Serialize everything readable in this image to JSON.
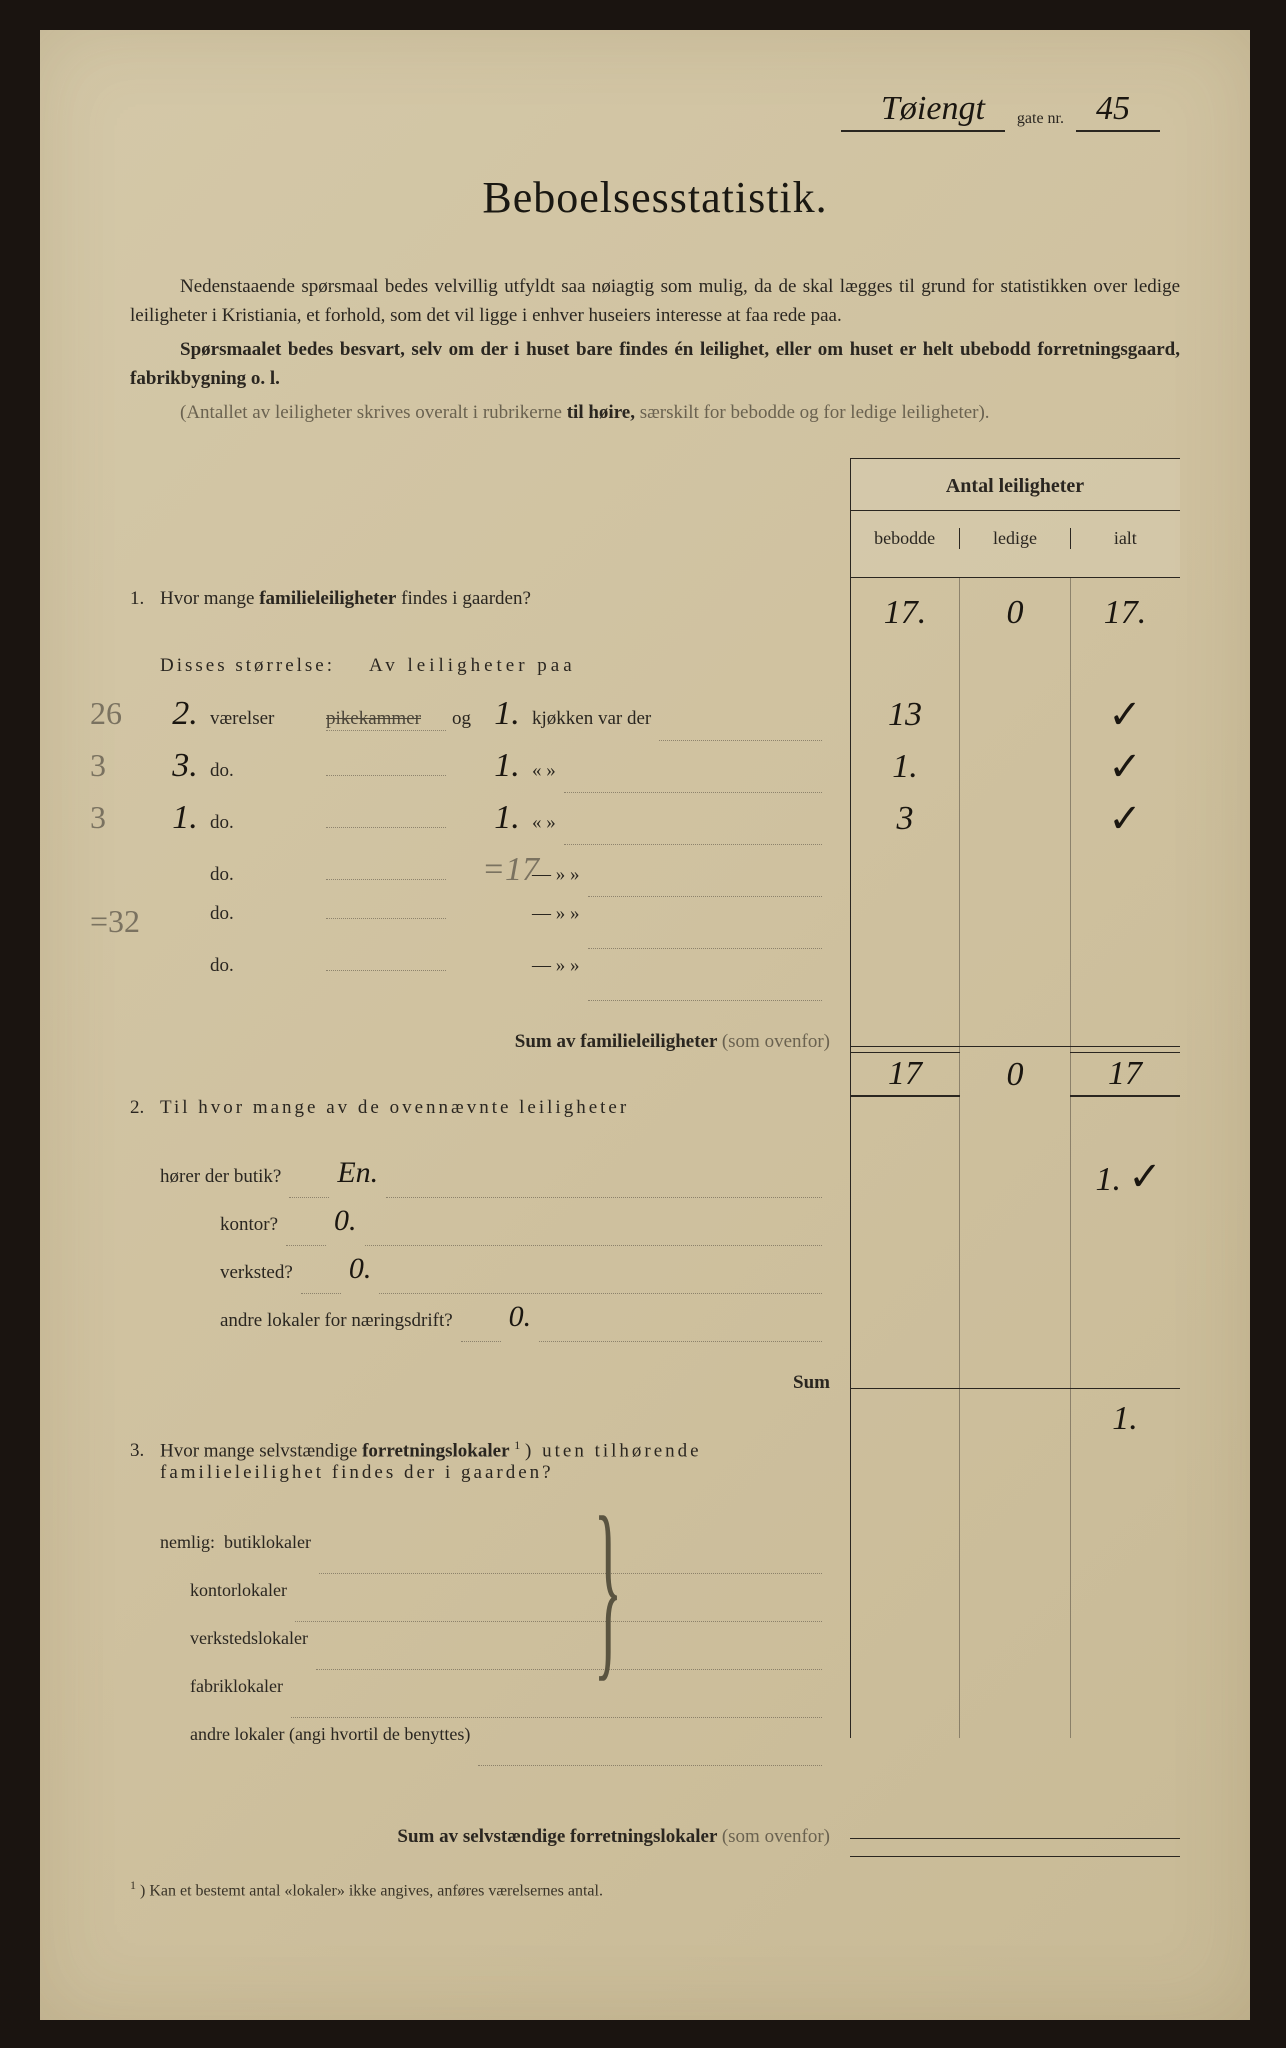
{
  "colors": {
    "paper": "#d4c8a8",
    "ink": "#2a2620",
    "handwriting": "#1a1610",
    "pencil": "#7a7260",
    "faded": "#6a6250",
    "background": "#1a1410"
  },
  "typography": {
    "body_fontsize": 19,
    "title_fontsize": 44,
    "handwriting_fontsize": 34
  },
  "header": {
    "street_name": "Tøiengt",
    "gate_label": "gate nr.",
    "gate_nr": "45"
  },
  "title": "Beboelsesstatistik.",
  "intro": {
    "p1_a": "Nedenstaaende spørsmaal bedes velvillig utfyldt saa nøiagtig som mulig, da de skal lægges til grund for statistikken over ledige leiligheter i Kristiania, et forhold, som det vil ligge i enhver huseiers interesse at faa rede paa.",
    "p2_a": "Spørsmaalet bedes besvart, selv om der i huset bare findes én leilighet, eller om huset er helt ubebodd forretningsgaard, fabrikbygning o. l.",
    "p3_a": "(Antallet av leiligheter skrives overalt i rubrikerne ",
    "p3_b": "til høire,",
    "p3_c": " særskilt for bebodde og for ledige leiligheter)."
  },
  "table_header": {
    "title": "Antal leiligheter",
    "cols": [
      "bebodde",
      "ledige",
      "ialt"
    ]
  },
  "q1": {
    "num": "1.",
    "text_a": "Hvor mange ",
    "text_b": "familieleiligheter",
    "text_c": " findes i gaarden?",
    "values": {
      "bebodde": "17.",
      "ledige": "0",
      "ialt": "17."
    },
    "sub_label_a": "Disses størrelse:",
    "sub_label_b": "Av leiligheter paa",
    "rows": [
      {
        "margin": "26",
        "vareiser": "2.",
        "label1": "værelser",
        "struck": "pikekammer",
        "og": "og",
        "kjokken": "1.",
        "label2": "kjøkken var der",
        "bebodde": "13",
        "ialt_check": "✓"
      },
      {
        "margin": "3",
        "vareiser": "3.",
        "label1": "do.",
        "struck": "do.",
        "og": "",
        "kjokken": "1.",
        "label2": "«  »",
        "bebodde": "1.",
        "ialt_check": "✓"
      },
      {
        "margin": "3",
        "vareiser": "1.",
        "label1": "do.",
        "struck": "do.",
        "og": "",
        "kjokken": "1.",
        "label2": "«  »",
        "bebodde": "3",
        "ialt_check": "✓"
      },
      {
        "margin": "",
        "vareiser": "",
        "label1": "do.",
        "struck": "do.",
        "og": "",
        "kjokken": "=17",
        "label2": "— » »",
        "bebodde": "",
        "ialt_check": ""
      },
      {
        "margin": "=32",
        "vareiser": "",
        "label1": "do.",
        "struck": "do.",
        "og": "",
        "kjokken": "",
        "label2": "— » »",
        "bebodde": "",
        "ialt_check": ""
      },
      {
        "margin": "",
        "vareiser": "",
        "label1": "do.",
        "struck": "do.",
        "og": "",
        "kjokken": "",
        "label2": "— » »",
        "bebodde": "",
        "ialt_check": ""
      }
    ],
    "sum_label": "Sum av familieleiligheter",
    "sum_suffix": "(som ovenfor)",
    "sum_values": {
      "bebodde": "17",
      "ledige": "0",
      "ialt": "17"
    }
  },
  "q2": {
    "num": "2.",
    "text": "Til hvor mange av de ovennævnte leiligheter",
    "rows": [
      {
        "label": "hører der butik?",
        "hw": "En.",
        "ialt": "1.",
        "check": "✓",
        "indent": false
      },
      {
        "label": "kontor?",
        "hw": "0.",
        "ialt": "",
        "check": "",
        "indent": true
      },
      {
        "label": "verksted?",
        "hw": "0.",
        "ialt": "",
        "check": "",
        "indent": true
      },
      {
        "label": "andre lokaler for næringsdrift?",
        "hw": "0.",
        "ialt": "",
        "check": "",
        "indent": true
      }
    ],
    "sum_label": "Sum",
    "sum_value": "1."
  },
  "q3": {
    "num": "3.",
    "text_a": "Hvor mange selvstændige ",
    "text_b": "forretningslokaler",
    "text_sup": "1",
    "text_c": ") uten tilhørende familieleilighet findes der i gaarden?",
    "nemlig": "nemlig:",
    "rows": [
      "butiklokaler",
      "kontorlokaler",
      "verkstedslokaler",
      "fabriklokaler",
      "andre lokaler (angi hvortil de benyttes)"
    ],
    "sum_label": "Sum av selvstændige forretningslokaler",
    "sum_suffix": "(som ovenfor)"
  },
  "footnote": {
    "sup": "1",
    "text": ") Kan et bestemt antal «lokaler» ikke angives, anføres værelsernes antal."
  }
}
